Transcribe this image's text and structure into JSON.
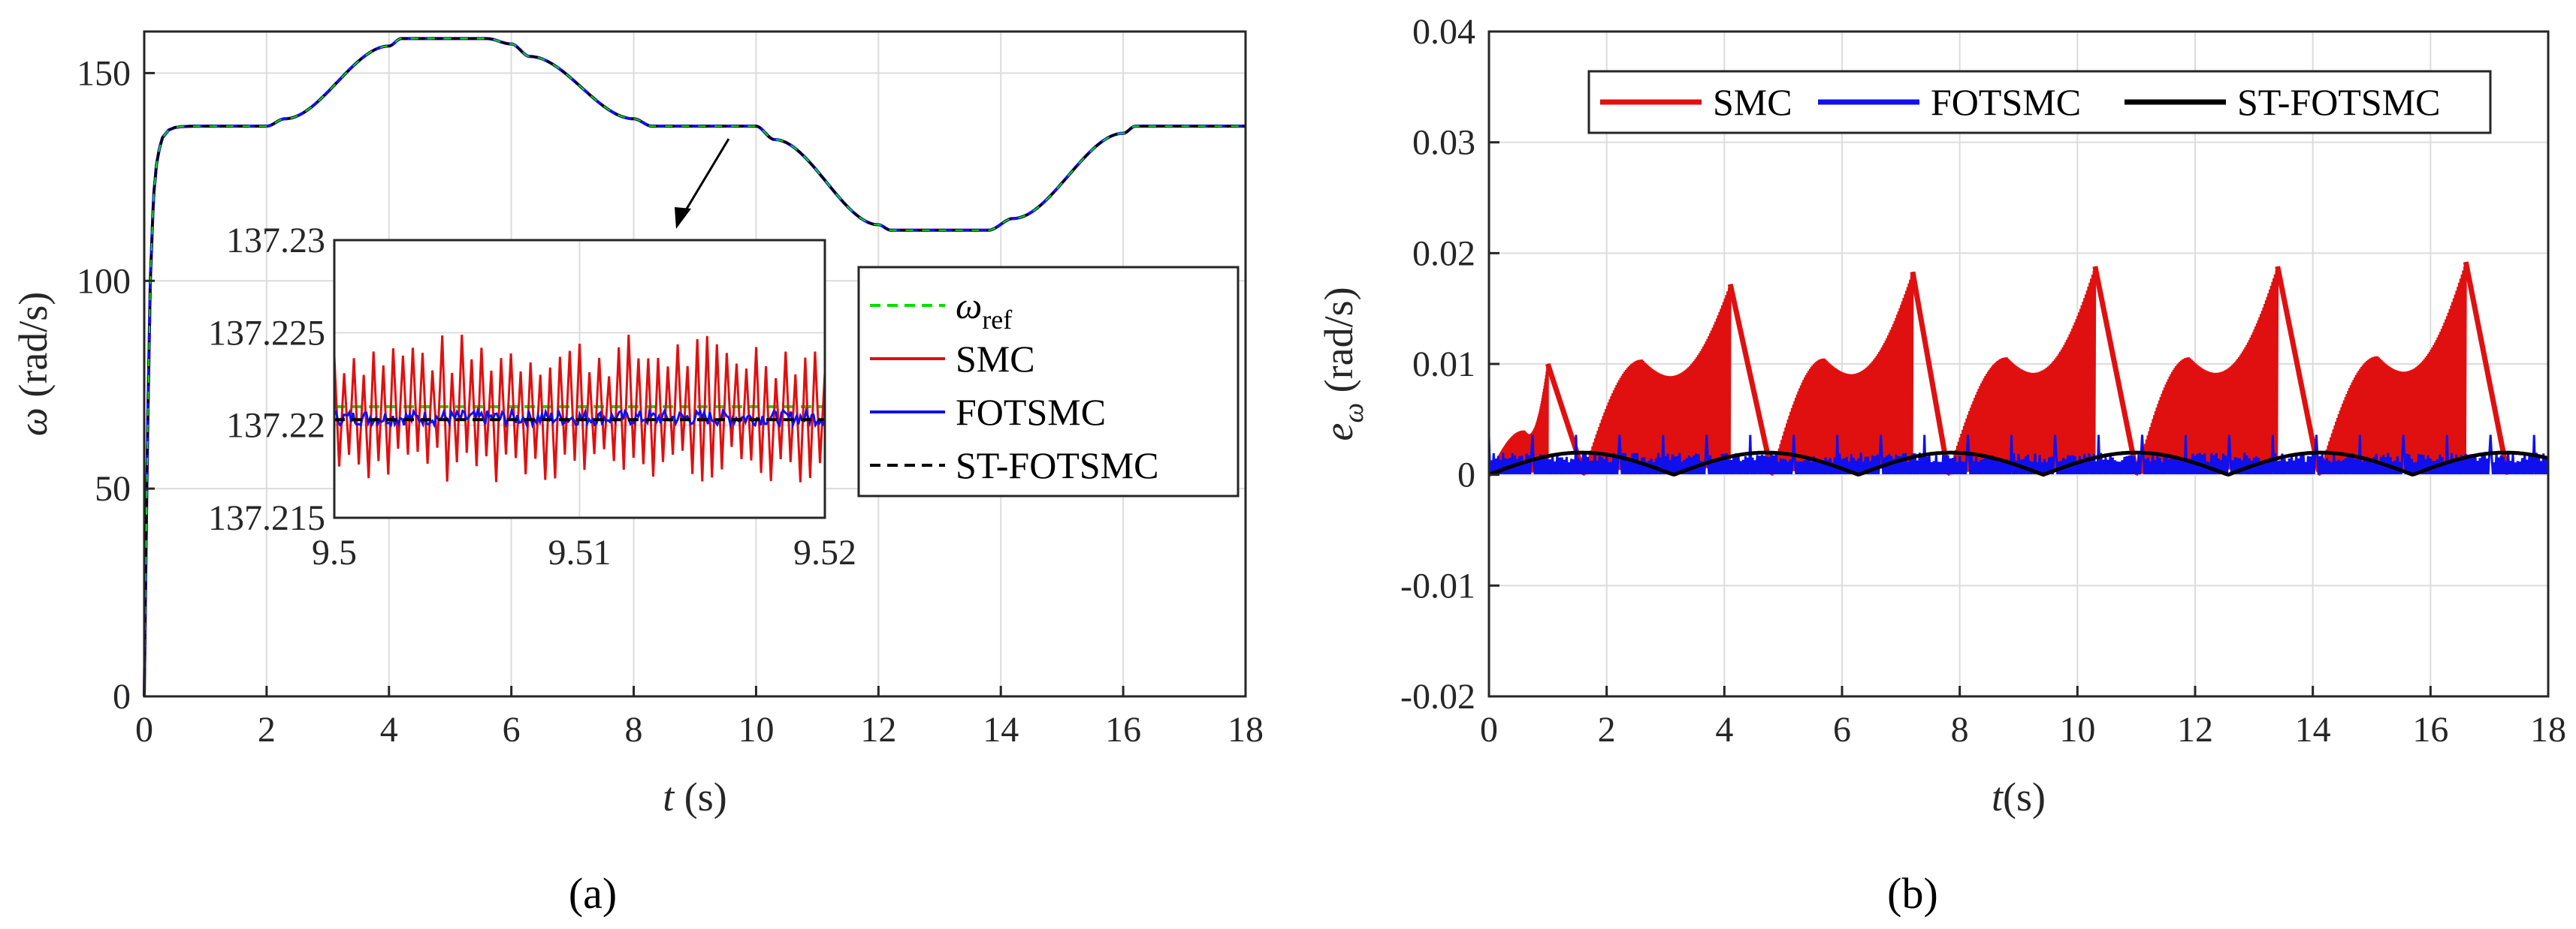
{
  "chart_data": [
    {
      "panel": "a",
      "type": "line",
      "caption": "(a)",
      "xlabel": "t (s)",
      "ylabel": "ω (rad/s)",
      "xlim": [
        0,
        18
      ],
      "ylim": [
        0,
        160
      ],
      "xticks": [
        0,
        2,
        4,
        6,
        8,
        10,
        12,
        14,
        16,
        18
      ],
      "yticks": [
        0,
        50,
        100,
        150
      ],
      "grid": true,
      "series": [
        {
          "name": "ω_ref",
          "color": "#00e000",
          "style": "dashed",
          "x": [
            0,
            0.05,
            0.1,
            0.15,
            0.2,
            0.25,
            0.3,
            0.4,
            0.5,
            0.6,
            0.8,
            2.0,
            2.3,
            4.0,
            4.2,
            5.6,
            6.0,
            6.3,
            8.0,
            8.3,
            10.0,
            10.3,
            12.0,
            12.2,
            13.8,
            14.2,
            16.0,
            16.2,
            18.0
          ],
          "y": [
            0,
            60,
            100,
            120,
            128,
            132,
            134.5,
            136.3,
            136.9,
            137.1,
            137.22,
            137.22,
            139,
            156.5,
            158.3,
            158.3,
            157,
            154,
            139,
            137.22,
            137.22,
            134,
            113.5,
            112.2,
            112.2,
            115,
            135.5,
            137.22,
            137.22
          ]
        },
        {
          "name": "SMC",
          "color": "#e01010",
          "style": "solid"
        },
        {
          "name": "FOTSMC",
          "color": "#1010ee",
          "style": "solid"
        },
        {
          "name": "ST-FOTSMC",
          "color": "#000000",
          "style": "dashed"
        }
      ],
      "legend": {
        "placement": "center-right",
        "entries": [
          "ω_ref",
          "SMC",
          "FOTSMC",
          "ST-FOTSMC"
        ]
      },
      "inset": {
        "xlim": [
          9.5,
          9.52
        ],
        "ylim": [
          137.215,
          137.23
        ],
        "xticks": [
          9.5,
          9.51,
          9.52
        ],
        "yticks": [
          137.215,
          137.22,
          137.225,
          137.23
        ],
        "ref_value": 137.221,
        "smc_mean": 137.2205,
        "smc_amplitude": 0.0045,
        "fotsmc_mean": 137.2204,
        "fotsmc_amplitude": 0.0004,
        "stfotsmc_value": 137.2203,
        "annotation_target_x": 9.6,
        "annotation_target_y": 137.22
      }
    },
    {
      "panel": "b",
      "type": "line",
      "caption": "(b)",
      "xlabel": "t(s)",
      "ylabel": "e_ω (rad/s)",
      "xlim": [
        0,
        18
      ],
      "ylim": [
        -0.02,
        0.04
      ],
      "xticks": [
        0,
        2,
        4,
        6,
        8,
        10,
        12,
        14,
        16,
        18
      ],
      "yticks": [
        -0.02,
        -0.01,
        0,
        0.01,
        0.02,
        0.03,
        0.04
      ],
      "grid": true,
      "series": [
        {
          "name": "SMC",
          "color": "#e01010",
          "style": "solid",
          "peaks": [
            {
              "start": 0,
              "peak_t": 1.0,
              "peak_v": 0.01,
              "end": 1.6,
              "lobe_t": 0.6,
              "lobe_v": 0.004
            },
            {
              "start": 1.6,
              "peak_t": 4.1,
              "peak_v": 0.0172,
              "end": 4.8,
              "lobe_t": 2.6,
              "lobe_v": 0.0104
            },
            {
              "start": 4.8,
              "peak_t": 7.2,
              "peak_v": 0.0183,
              "end": 7.8,
              "lobe_t": 5.7,
              "lobe_v": 0.0105
            },
            {
              "start": 7.8,
              "peak_t": 10.3,
              "peak_v": 0.0188,
              "end": 11.0,
              "lobe_t": 8.8,
              "lobe_v": 0.0106
            },
            {
              "start": 11.0,
              "peak_t": 13.4,
              "peak_v": 0.0188,
              "end": 14.1,
              "lobe_t": 11.9,
              "lobe_v": 0.0106
            },
            {
              "start": 14.1,
              "peak_t": 16.6,
              "peak_v": 0.0192,
              "end": 17.3,
              "lobe_t": 15.1,
              "lobe_v": 0.0107
            }
          ]
        },
        {
          "name": "FOTSMC",
          "color": "#1010ee",
          "style": "solid",
          "band_max": 0.002
        },
        {
          "name": "ST-FOTSMC",
          "color": "#000000",
          "style": "solid",
          "arch_period": 3.14,
          "arch_max": 0.002
        }
      ],
      "legend": {
        "placement": "top-center",
        "entries": [
          "SMC",
          "FOTSMC",
          "ST-FOTSMC"
        ]
      }
    }
  ]
}
